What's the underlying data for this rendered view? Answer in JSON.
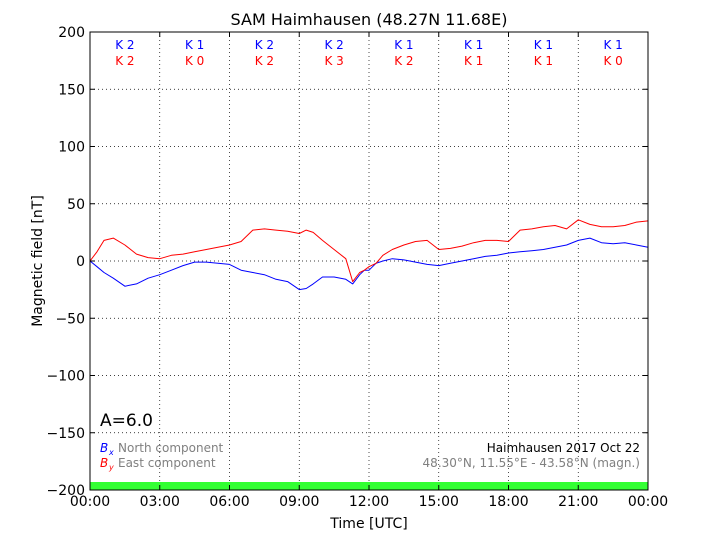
{
  "chart_data": {
    "type": "line",
    "title": "SAM Haimhausen (48.27N 11.68E)",
    "xlabel": "Time [UTC]",
    "ylabel": "Magnetic field [nT]",
    "xlim": [
      0,
      24
    ],
    "ylim": [
      -200,
      200
    ],
    "x_ticks": [
      "00:00",
      "03:00",
      "06:00",
      "09:00",
      "12:00",
      "15:00",
      "18:00",
      "21:00",
      "00:00"
    ],
    "y_ticks": [
      200,
      150,
      100,
      50,
      0,
      -50,
      -100,
      -150,
      -200
    ],
    "y_tick_labels": [
      "200",
      "150",
      "100",
      "50",
      "0",
      "−50",
      "−100",
      "−150",
      "−200"
    ],
    "grid": true,
    "k_indices": {
      "x_label": [
        "K 2",
        "K 1",
        "K 2",
        "K 2",
        "K 1",
        "K 1",
        "K 1",
        "K 1"
      ],
      "y_label": [
        "K 2",
        "K 0",
        "K 2",
        "K 3",
        "K 2",
        "K 1",
        "K 1",
        "K 0"
      ]
    },
    "a_index": "A=6.0",
    "legend": [
      {
        "symbol": "B",
        "subscript": "x",
        "text": "North component",
        "color": "#0000ff"
      },
      {
        "symbol": "B",
        "subscript": "y",
        "text": "East component",
        "color": "#ff0000"
      }
    ],
    "legend_placement": "bottom-left",
    "annotation_station": "Haimhausen 2017 Oct 22",
    "annotation_coords": "48.30°N, 11.55°E - 43.58°N (magn.)",
    "activity_bar_color": "#33ff33",
    "series": [
      {
        "color": "#0000ff",
        "x": [
          0,
          0.3,
          0.6,
          1.0,
          1.5,
          2.0,
          2.5,
          3.0,
          3.5,
          4.0,
          4.5,
          5.0,
          5.5,
          6.0,
          6.5,
          7.0,
          7.5,
          8.0,
          8.5,
          9.0,
          9.3,
          9.6,
          10.0,
          10.5,
          11.0,
          11.3,
          11.6,
          11.8,
          12.0,
          12.3,
          12.6,
          13.0,
          13.5,
          14.0,
          14.5,
          15.0,
          15.5,
          16.0,
          16.5,
          17.0,
          17.5,
          18.0,
          18.5,
          19.0,
          19.5,
          20.0,
          20.5,
          21.0,
          21.5,
          22.0,
          22.5,
          23.0,
          23.5,
          24.0
        ],
        "y": [
          0,
          -5,
          -10,
          -15,
          -22,
          -20,
          -15,
          -12,
          -8,
          -4,
          -1,
          -1,
          -2,
          -3,
          -8,
          -10,
          -12,
          -16,
          -18,
          -25,
          -24,
          -20,
          -14,
          -14,
          -16,
          -20,
          -12,
          -8,
          -8,
          -2,
          0,
          2,
          1,
          -1,
          -3,
          -4,
          -2,
          0,
          2,
          4,
          5,
          7,
          8,
          9,
          10,
          12,
          14,
          18,
          20,
          16,
          15,
          16,
          14,
          12
        ]
      },
      {
        "color": "#ff0000",
        "x": [
          0,
          0.3,
          0.6,
          1.0,
          1.5,
          2.0,
          2.5,
          3.0,
          3.5,
          4.0,
          4.5,
          5.0,
          5.5,
          6.0,
          6.5,
          7.0,
          7.5,
          8.0,
          8.5,
          9.0,
          9.3,
          9.6,
          10.0,
          10.5,
          11.0,
          11.3,
          11.6,
          11.8,
          12.0,
          12.3,
          12.6,
          13.0,
          13.5,
          14.0,
          14.5,
          15.0,
          15.5,
          16.0,
          16.5,
          17.0,
          17.5,
          18.0,
          18.5,
          19.0,
          19.5,
          20.0,
          20.5,
          21.0,
          21.5,
          22.0,
          22.5,
          23.0,
          23.5,
          24.0
        ],
        "y": [
          0,
          8,
          18,
          20,
          14,
          6,
          3,
          2,
          5,
          6,
          8,
          10,
          12,
          14,
          17,
          27,
          28,
          27,
          26,
          24,
          27,
          25,
          18,
          10,
          2,
          -18,
          -10,
          -8,
          -5,
          -2,
          5,
          10,
          14,
          17,
          18,
          10,
          11,
          13,
          16,
          18,
          18,
          17,
          27,
          28,
          30,
          31,
          28,
          36,
          32,
          30,
          30,
          31,
          34,
          35
        ]
      }
    ]
  }
}
